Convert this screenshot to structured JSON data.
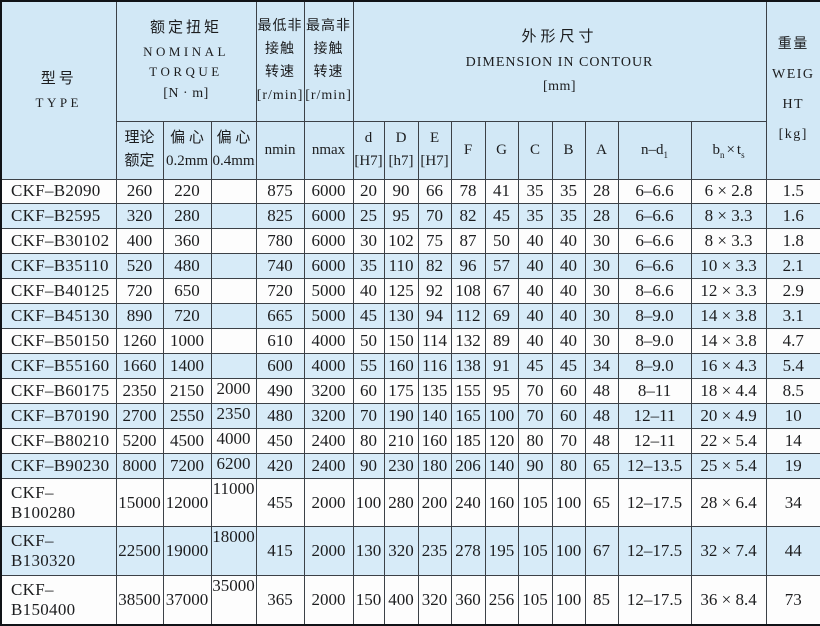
{
  "colors": {
    "header_bg": "#d2e8f6",
    "row_alt_bg": "#d7ebf8",
    "grid_border": "#3c4147",
    "outer_border": "#101317",
    "text": "#1c1d1f"
  },
  "header": {
    "type": {
      "zh": "型号",
      "en": "TYPE"
    },
    "torque": {
      "zh": "额定扭矩",
      "en1": "NOMINAL",
      "en2": "TORQUE",
      "unit": "[N · m]",
      "sub_rated_1": "理论",
      "sub_rated_2": "额定",
      "sub_ecc02_1": "偏 心",
      "sub_ecc02_2": "0.2mm",
      "sub_ecc04_1": "偏 心",
      "sub_ecc04_2": "0.4mm"
    },
    "nmin": {
      "l1": "最低非",
      "l2": "接触",
      "l3": "转速",
      "l4": "[r/min]",
      "sub": "nmin"
    },
    "nmax": {
      "l1": "最高非",
      "l2": "接触",
      "l3": "转速",
      "l4": "[r/min]",
      "sub": "nmax"
    },
    "dimension": {
      "zh": "外形尺寸",
      "en": "DIMENSION IN CONTOUR",
      "unit": "[mm]",
      "sub_d_1": "d",
      "sub_d_2": "[H7]",
      "sub_D_1": "D",
      "sub_D_2": "[h7]",
      "sub_E_1": "E",
      "sub_E_2": "[H7]",
      "sub_F": "F",
      "sub_G": "G",
      "sub_C": "C",
      "sub_B": "B",
      "sub_A": "A",
      "sub_nd_main": "n–d",
      "sub_nd_sub": "1",
      "sub_bt_b": "b",
      "sub_bt_b_sub": "n",
      "sub_bt_times": "×",
      "sub_bt_t": "t",
      "sub_bt_t_sub": "s"
    },
    "weight": {
      "l1": "重量",
      "l2": "WEIG",
      "l3": "HT",
      "l4": "[kg]"
    }
  },
  "column_keys": [
    "torque-rated",
    "torque-ecc-0-2",
    "torque-ecc-0-4",
    "nmin",
    "nmax",
    "d",
    "D",
    "E",
    "F",
    "G",
    "C",
    "B",
    "A",
    "n-d1",
    "bxt",
    "weight"
  ],
  "rows": [
    {
      "type": "CKF–B2090",
      "values": [
        "260",
        "220",
        "",
        "875",
        "6000",
        "20",
        "90",
        "66",
        "78",
        "41",
        "35",
        "35",
        "28",
        "6–6.6",
        "6 × 2.8",
        "1.5"
      ]
    },
    {
      "type": "CKF–B2595",
      "values": [
        "320",
        "280",
        "",
        "825",
        "6000",
        "25",
        "95",
        "70",
        "82",
        "45",
        "35",
        "35",
        "28",
        "6–6.6",
        "8 × 3.3",
        "1.6"
      ]
    },
    {
      "type": "CKF–B30102",
      "values": [
        "400",
        "360",
        "",
        "780",
        "6000",
        "30",
        "102",
        "75",
        "87",
        "50",
        "40",
        "40",
        "30",
        "6–6.6",
        "8 × 3.3",
        "1.8"
      ]
    },
    {
      "type": "CKF–B35110",
      "values": [
        "520",
        "480",
        "",
        "740",
        "6000",
        "35",
        "110",
        "82",
        "96",
        "57",
        "40",
        "40",
        "30",
        "6–6.6",
        "10 × 3.3",
        "2.1"
      ]
    },
    {
      "type": "CKF–B40125",
      "values": [
        "720",
        "650",
        "",
        "720",
        "5000",
        "40",
        "125",
        "92",
        "108",
        "67",
        "40",
        "40",
        "30",
        "8–6.6",
        "12 × 3.3",
        "2.9"
      ]
    },
    {
      "type": "CKF–B45130",
      "values": [
        "890",
        "720",
        "",
        "665",
        "5000",
        "45",
        "130",
        "94",
        "112",
        "69",
        "40",
        "40",
        "30",
        "8–9.0",
        "14 × 3.8",
        "3.1"
      ]
    },
    {
      "type": "CKF–B50150",
      "values": [
        "1260",
        "1000",
        "",
        "610",
        "4000",
        "50",
        "150",
        "114",
        "132",
        "89",
        "40",
        "40",
        "30",
        "8–9.0",
        "14 × 3.8",
        "4.7"
      ]
    },
    {
      "type": "CKF–B55160",
      "values": [
        "1660",
        "1400",
        "",
        "600",
        "4000",
        "55",
        "160",
        "116",
        "138",
        "91",
        "45",
        "45",
        "34",
        "8–9.0",
        "16 × 4.3",
        "5.4"
      ]
    },
    {
      "type": "CKF–B60175",
      "values": [
        "2350",
        "2150",
        "2000",
        "490",
        "3200",
        "60",
        "175",
        "135",
        "155",
        "95",
        "70",
        "60",
        "48",
        "8–11",
        "18 × 4.4",
        "8.5"
      ]
    },
    {
      "type": "CKF–B70190",
      "values": [
        "2700",
        "2550",
        "2350",
        "480",
        "3200",
        "70",
        "190",
        "140",
        "165",
        "100",
        "70",
        "60",
        "48",
        "12–11",
        "20 × 4.9",
        "10"
      ]
    },
    {
      "type": "CKF–B80210",
      "values": [
        "5200",
        "4500",
        "4000",
        "450",
        "2400",
        "80",
        "210",
        "160",
        "185",
        "120",
        "80",
        "70",
        "48",
        "12–11",
        "22 × 5.4",
        "14"
      ]
    },
    {
      "type": "CKF–B90230",
      "values": [
        "8000",
        "7200",
        "6200",
        "420",
        "2400",
        "90",
        "230",
        "180",
        "206",
        "140",
        "90",
        "80",
        "65",
        "12–13.5",
        "25 × 5.4",
        "19"
      ]
    },
    {
      "type": "CKF–B100280",
      "values": [
        "15000",
        "12000",
        "11000",
        "455",
        "2000",
        "100",
        "280",
        "200",
        "240",
        "160",
        "105",
        "100",
        "65",
        "12–17.5",
        "28 × 6.4",
        "34"
      ]
    },
    {
      "type": "CKF–B130320",
      "values": [
        "22500",
        "19000",
        "18000",
        "415",
        "2000",
        "130",
        "320",
        "235",
        "278",
        "195",
        "105",
        "100",
        "67",
        "12–17.5",
        "32 × 7.4",
        "44"
      ]
    },
    {
      "type": "CKF–B150400",
      "values": [
        "38500",
        "37000",
        "35000",
        "365",
        "2000",
        "150",
        "400",
        "320",
        "360",
        "256",
        "105",
        "100",
        "85",
        "12–17.5",
        "36 × 8.4",
        "73"
      ]
    }
  ]
}
